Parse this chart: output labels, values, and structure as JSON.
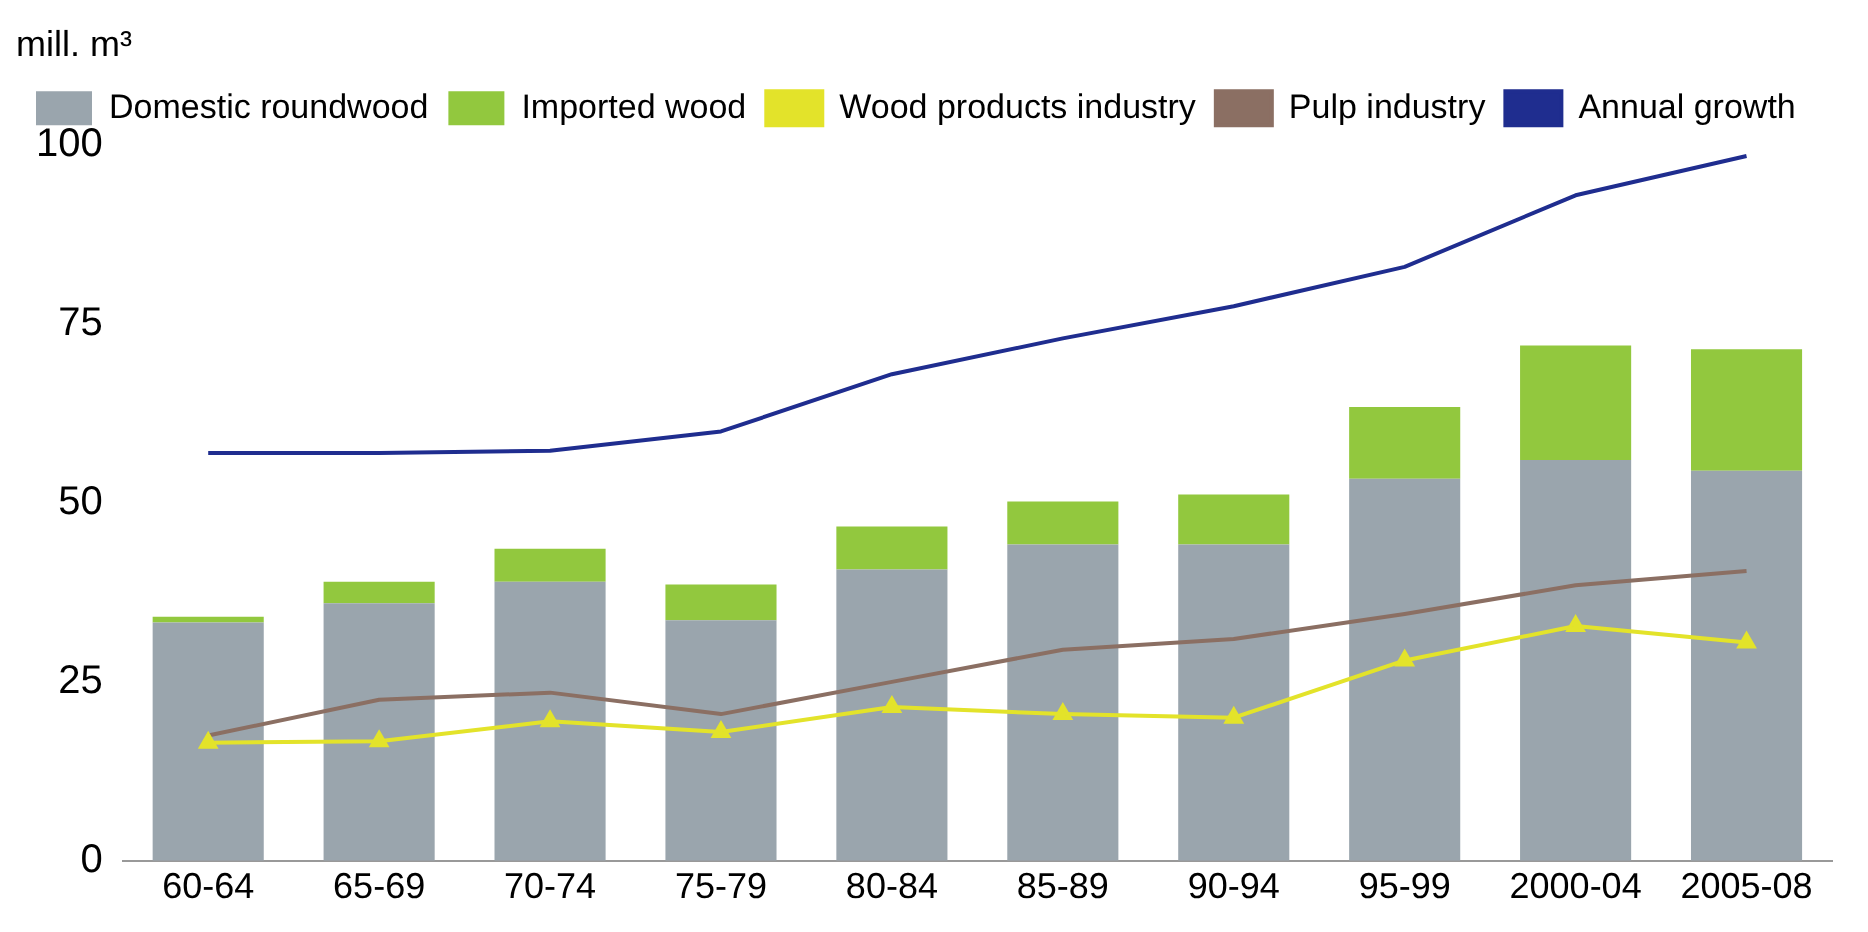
{
  "chart_data": {
    "type": "bar",
    "ylabel": "mill. m³",
    "stacked": true,
    "categories": [
      "60-64",
      "65-69",
      "70-74",
      "75-79",
      "80-84",
      "85-89",
      "90-94",
      "95-99",
      "2000-04",
      "2005-08"
    ],
    "series": [
      {
        "name": "Domestic roundwood",
        "color": "#9aa5ad",
        "values": [
          33.3,
          36,
          39,
          33.6,
          40.7,
          44.2,
          44.2,
          53.4,
          56,
          54.5
        ]
      },
      {
        "name": "Imported wood",
        "color": "#92c83e",
        "values": [
          0.8,
          3,
          4.6,
          5,
          6,
          6,
          7,
          10,
          16,
          17
        ]
      },
      {
        "name": "Wood products industry",
        "type": "line",
        "color": "#e3e32a",
        "marker": "triangle",
        "values": [
          16.5,
          16.7,
          19.5,
          18,
          21.5,
          20.5,
          20,
          28,
          32.8,
          30.5
        ]
      },
      {
        "name": "Pulp industry",
        "type": "line",
        "color": "#8b6f63",
        "marker": "none",
        "values": [
          17.5,
          22.5,
          23.5,
          20.5,
          25,
          29.5,
          31,
          34.5,
          38.5,
          40.5
        ]
      },
      {
        "name": "Annual growth",
        "type": "line",
        "color": "#1f2d8f",
        "marker": "none",
        "values": [
          57,
          57,
          57.3,
          60,
          68,
          73,
          77.5,
          83,
          93,
          98.5
        ]
      }
    ],
    "ylim": [
      0,
      100
    ],
    "yticks": [
      0,
      25,
      50,
      75,
      100
    ],
    "grid": false,
    "legend": "top left"
  }
}
